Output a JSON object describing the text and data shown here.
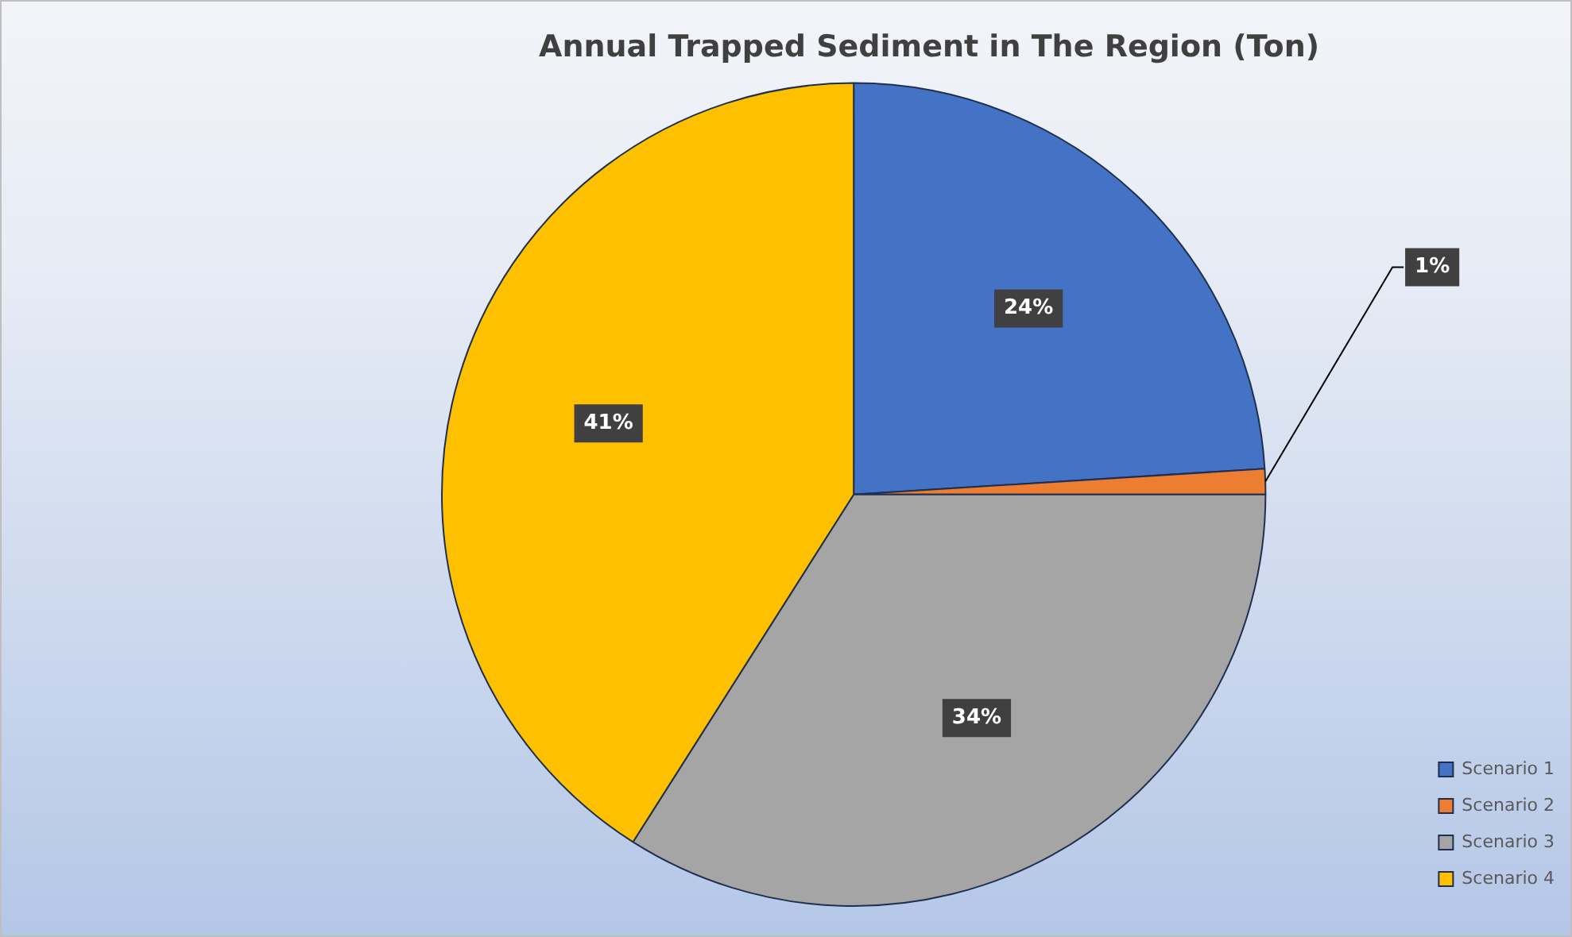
{
  "chart_data": {
    "type": "pie",
    "title": "Annual Trapped Sediment in The Region (Ton)",
    "categories": [
      "Scenario 1",
      "Scenario 2",
      "Scenario 3",
      "Scenario 4"
    ],
    "values": [
      24,
      1,
      34,
      41
    ],
    "value_labels": [
      "24%",
      "1%",
      "34%",
      "41%"
    ],
    "colors": [
      "#4472c4",
      "#ed7d31",
      "#a5a5a5",
      "#ffc000"
    ],
    "legend": "bottom right"
  }
}
